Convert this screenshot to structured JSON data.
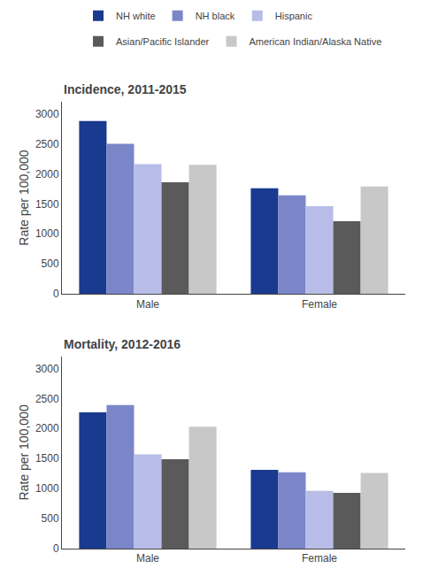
{
  "chart_data": [
    {
      "type": "bar",
      "title": "Incidence, 2011-2015",
      "ylabel": "Rate per 100,000",
      "categories": [
        "Male",
        "Female"
      ],
      "series": [
        {
          "name": "NH white",
          "color": "#1a3a8f",
          "values": [
            2880,
            1760
          ]
        },
        {
          "name": "NH black",
          "color": "#7b86c8",
          "values": [
            2500,
            1640
          ]
        },
        {
          "name": "Hispanic",
          "color": "#b8bde8",
          "values": [
            2160,
            1460
          ]
        },
        {
          "name": "Asian/Pacific Islander",
          "color": "#5a5a5a",
          "values": [
            1860,
            1210
          ]
        },
        {
          "name": "American Indian/Alaska Native",
          "color": "#c8c8c8",
          "values": [
            2150,
            1790
          ]
        }
      ],
      "ylim": [
        0,
        3200
      ],
      "yticks": [
        0,
        500,
        1000,
        1500,
        2000,
        2500,
        3000
      ],
      "grid": false,
      "legend": "top"
    },
    {
      "type": "bar",
      "title": "Mortality, 2012-2016",
      "ylabel": "Rate per 100,000",
      "categories": [
        "Male",
        "Female"
      ],
      "series": [
        {
          "name": "NH white",
          "color": "#1a3a8f",
          "values": [
            2270,
            1310
          ]
        },
        {
          "name": "NH black",
          "color": "#7b86c8",
          "values": [
            2390,
            1270
          ]
        },
        {
          "name": "Hispanic",
          "color": "#b8bde8",
          "values": [
            1570,
            960
          ]
        },
        {
          "name": "Asian/Pacific Islander",
          "color": "#5a5a5a",
          "values": [
            1490,
            930
          ]
        },
        {
          "name": "American Indian/Alaska Native",
          "color": "#c8c8c8",
          "values": [
            2030,
            1260
          ]
        }
      ],
      "ylim": [
        0,
        3200
      ],
      "yticks": [
        0,
        500,
        1000,
        1500,
        2000,
        2500,
        3000
      ],
      "grid": false
    }
  ]
}
